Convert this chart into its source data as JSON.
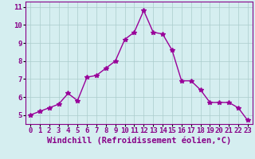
{
  "x": [
    0,
    1,
    2,
    3,
    4,
    5,
    6,
    7,
    8,
    9,
    10,
    11,
    12,
    13,
    14,
    15,
    16,
    17,
    18,
    19,
    20,
    21,
    22,
    23
  ],
  "y": [
    5.0,
    5.2,
    5.4,
    5.6,
    6.2,
    5.8,
    7.1,
    7.2,
    7.6,
    8.0,
    9.2,
    9.6,
    10.8,
    9.6,
    9.5,
    8.6,
    6.9,
    6.9,
    6.4,
    5.7,
    5.7,
    5.7,
    5.4,
    4.7
  ],
  "line_color": "#990099",
  "marker": "*",
  "marker_size": 4,
  "bg_color": "#d5eef0",
  "grid_color": "#aacccc",
  "xlabel": "Windchill (Refroidissement éolien,°C)",
  "ylim": [
    4.5,
    11.3
  ],
  "xlim": [
    -0.5,
    23.5
  ],
  "yticks": [
    5,
    6,
    7,
    8,
    9,
    10,
    11
  ],
  "xticks": [
    0,
    1,
    2,
    3,
    4,
    5,
    6,
    7,
    8,
    9,
    10,
    11,
    12,
    13,
    14,
    15,
    16,
    17,
    18,
    19,
    20,
    21,
    22,
    23
  ],
  "tick_label_color": "#880088",
  "xlabel_color": "#880088",
  "xlabel_fontsize": 7.5,
  "tick_fontsize": 6.5,
  "line_width": 1.0
}
